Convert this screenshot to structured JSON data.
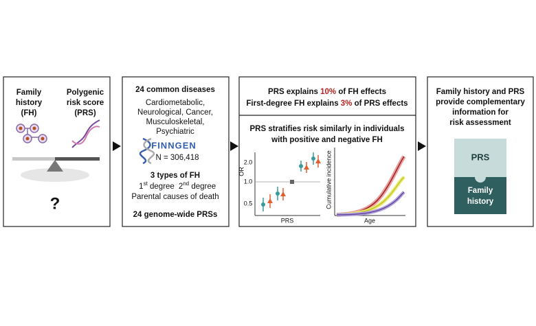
{
  "panels": [
    {
      "family_history": [
        "Family",
        "history",
        "(FH)"
      ],
      "prs": [
        "Polygenic",
        "risk score",
        "(PRS)"
      ],
      "question": "?"
    },
    {
      "title": "24 common diseases",
      "categories": [
        "Cardiometabolic,",
        "Neurological, Cancer,",
        "Musculoskeletal,",
        "Psychiatric"
      ],
      "logo": "FINNGEN",
      "sample_size": "N = 306,418",
      "fh_title": "3 types of FH",
      "fh_first": {
        "number": "1",
        "suffix": "st",
        "rest": " degree"
      },
      "fh_second": {
        "number": "2",
        "suffix": "nd",
        "rest": " degree"
      },
      "fh_parental": "Parental causes of death",
      "prs_title": "24 genome-wide PRSs"
    },
    {
      "finding_1": {
        "before": "PRS explains ",
        "highlight": "10%",
        "after": " of FH effects"
      },
      "finding_2": {
        "before": "First-degree FH explains ",
        "highlight": "3%",
        "after": " of PRS effects"
      },
      "subtitle": [
        "PRS stratifies risk similarly in individuals",
        "with positive and negative FH"
      ],
      "or_plot": {
        "y_label": "OR",
        "x_label": "PRS",
        "ticks": [
          "2.0",
          "1.0",
          "0.5"
        ]
      },
      "incidence_plot": {
        "y_label": "Cumulative incidence",
        "x_label": "Age"
      }
    },
    {
      "title": [
        "Family history and PRS",
        "provide complementary",
        "information for",
        "risk assessment"
      ],
      "top_piece": "PRS",
      "bottom_piece": [
        "Family",
        "history"
      ]
    }
  ]
}
